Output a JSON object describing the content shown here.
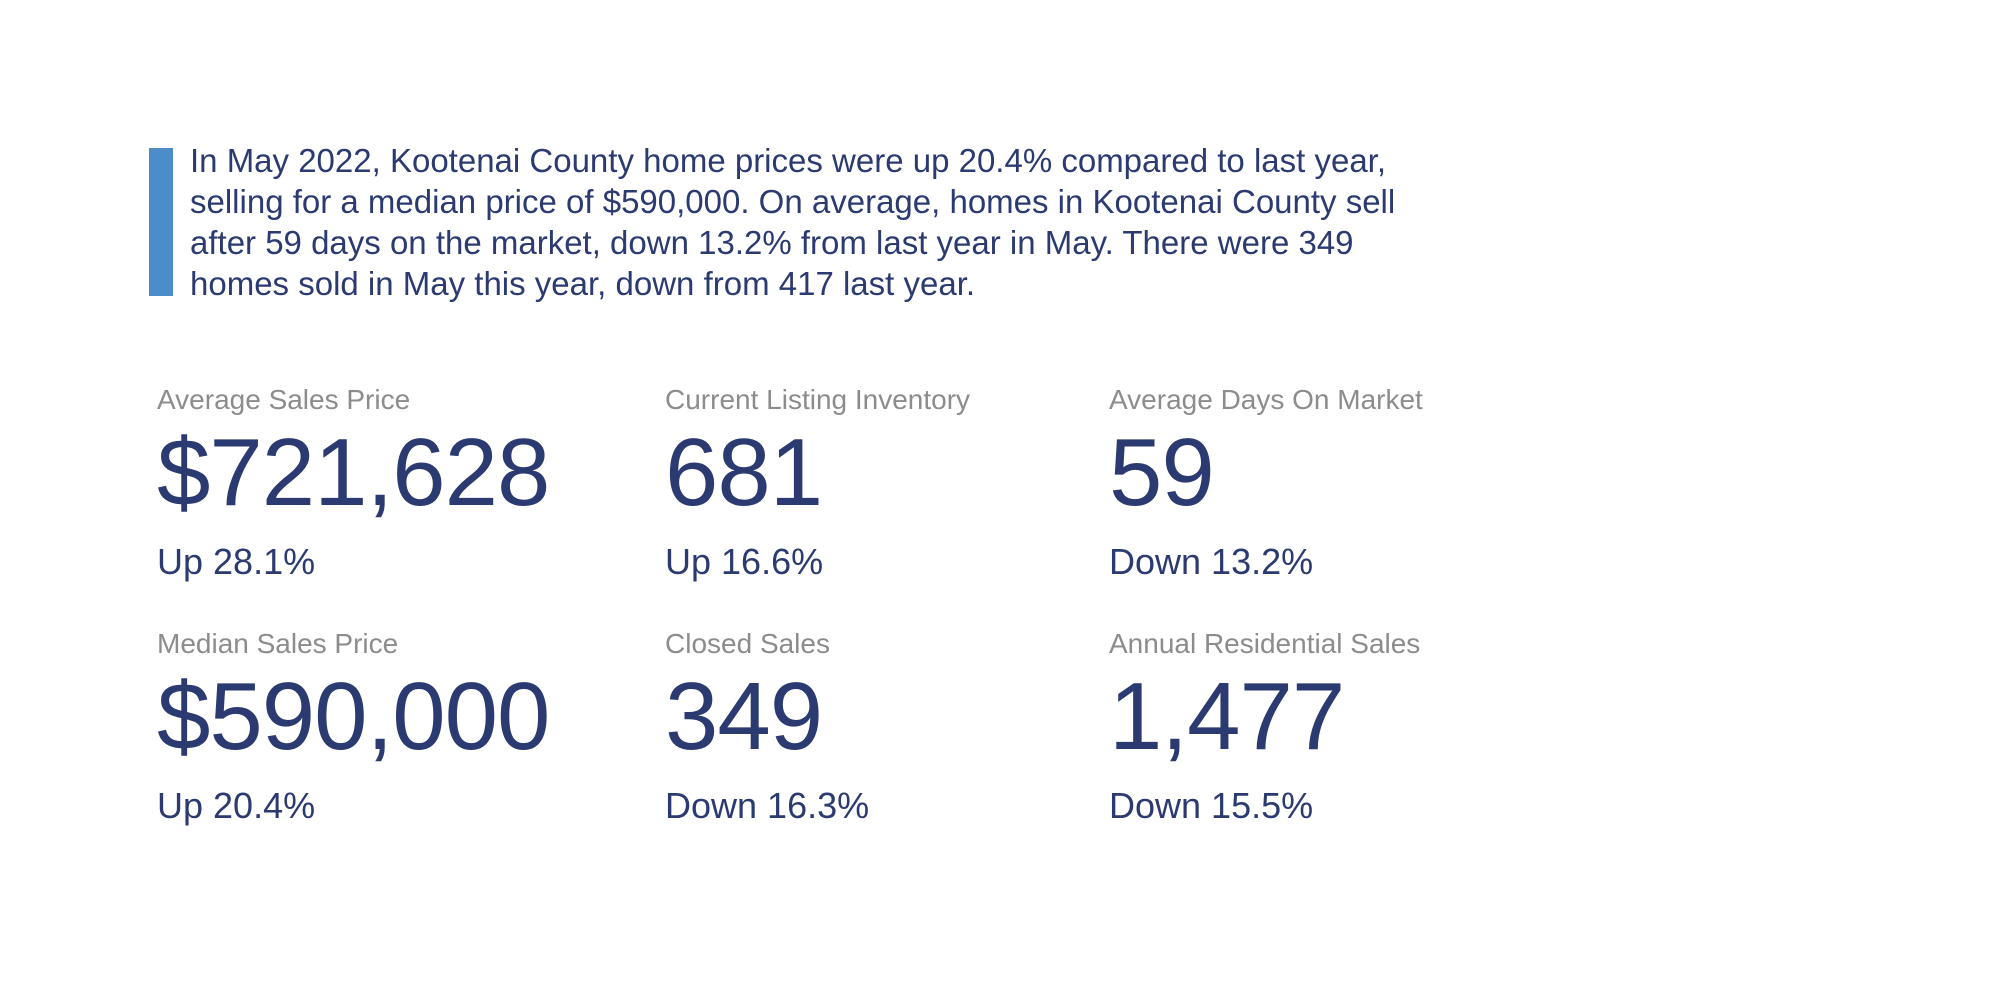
{
  "colors": {
    "navy_text": "#2b3a70",
    "label_gray": "#8c8c8c",
    "accent_blue_bar": "#4c8cc9",
    "background": "#ffffff"
  },
  "summary": {
    "text": "In May 2022, Kootenai County home prices were up 20.4% compared to last year, selling for a median price of $590,000. On average, homes in Kootenai County sell after 59 days on the market, down 13.2% from last year in May. There were 349 homes sold in May this year, down from 417 last year."
  },
  "stats": [
    {
      "label": "Average Sales Price",
      "value": "$721,628",
      "change": "Up 28.1%"
    },
    {
      "label": "Current Listing Inventory",
      "value": "681",
      "change": "Up 16.6%"
    },
    {
      "label": "Average Days On Market",
      "value": "59",
      "change": "Down 13.2%"
    },
    {
      "label": "Median Sales Price",
      "value": "$590,000",
      "change": "Up 20.4%"
    },
    {
      "label": "Closed Sales",
      "value": "349",
      "change": "Down 16.3%"
    },
    {
      "label": "Annual Residential Sales",
      "value": "1,477",
      "change": "Down 15.5%"
    }
  ]
}
